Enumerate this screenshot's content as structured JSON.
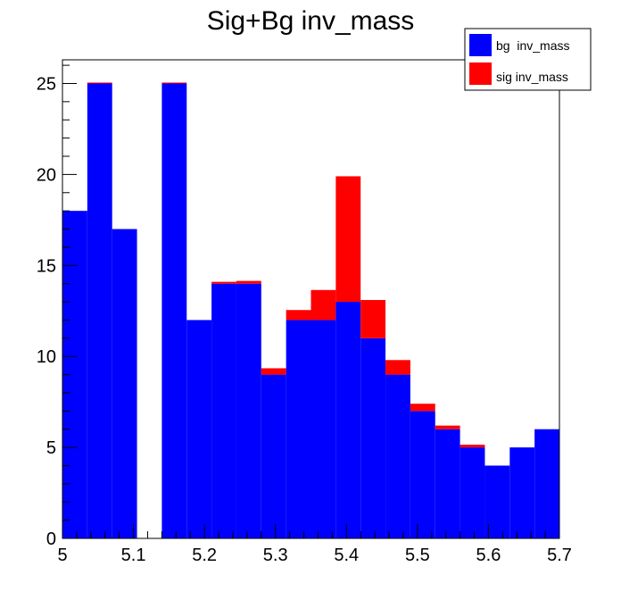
{
  "chart_data": {
    "type": "bar",
    "title": "Sig+Bg inv_mass",
    "xlim": [
      5.0,
      5.7
    ],
    "ylim": [
      0,
      26.3
    ],
    "bin_width": 0.035,
    "x_ticks": [
      "5",
      "5.1",
      "5.2",
      "5.3",
      "5.4",
      "5.5",
      "5.6",
      "5.7"
    ],
    "x_tick_values": [
      5.0,
      5.1,
      5.2,
      5.3,
      5.4,
      5.5,
      5.6,
      5.7
    ],
    "y_ticks": [
      "0",
      "5",
      "10",
      "15",
      "20",
      "25"
    ],
    "y_tick_values": [
      0,
      5,
      10,
      15,
      20,
      25
    ],
    "legend_position": "top-right",
    "stacked": true,
    "series": [
      {
        "name": "bg  inv_mass",
        "color": "#0000ff",
        "values": [
          18,
          25,
          17,
          0,
          25,
          12,
          14,
          14,
          9,
          12,
          12,
          13,
          11,
          9,
          7,
          6,
          5,
          4,
          5,
          6
        ]
      },
      {
        "name": "sig inv_mass",
        "color": "#ff0000",
        "values": [
          0,
          0.05,
          0,
          0,
          0.05,
          0,
          0.1,
          0.15,
          0.35,
          0.55,
          1.65,
          6.9,
          2.1,
          0.8,
          0.4,
          0.2,
          0.15,
          0,
          0,
          0
        ]
      }
    ]
  }
}
